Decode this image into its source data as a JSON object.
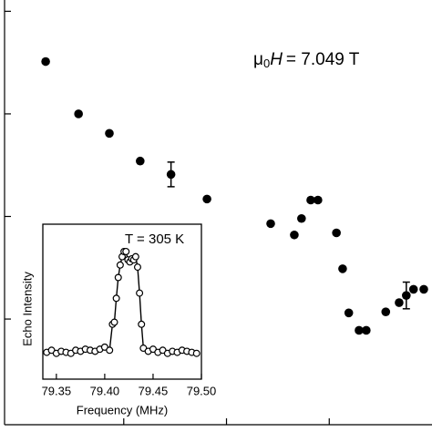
{
  "chart_data": [
    {
      "type": "scatter",
      "annotation": {
        "symbol": "μ",
        "subscript": "0",
        "variable": "H",
        "text": "= 7.049 T"
      },
      "x": [
        0.24,
        0.56,
        0.86,
        1.16,
        1.46,
        1.81,
        2.43,
        2.66,
        2.73,
        2.82,
        2.89,
        3.07,
        3.13,
        3.19,
        3.29,
        3.36,
        3.55,
        3.68,
        3.75,
        3.82,
        3.92
      ],
      "values": [
        3.51,
        3.0,
        2.81,
        2.54,
        2.41,
        2.17,
        1.93,
        1.82,
        1.98,
        2.16,
        2.16,
        1.84,
        1.49,
        1.06,
        0.89,
        0.89,
        1.07,
        1.16,
        1.23,
        1.29,
        1.29
      ],
      "errors": [
        null,
        null,
        null,
        null,
        0.12,
        null,
        null,
        null,
        null,
        null,
        null,
        null,
        null,
        null,
        null,
        null,
        null,
        null,
        0.13,
        null,
        null
      ],
      "color": "#000000",
      "xlim": [
        -0.16,
        4.0
      ],
      "xticks": [
        1,
        2,
        3
      ],
      "ylim": [
        -0.03,
        4.11
      ],
      "yticks": [
        1,
        2,
        3,
        4
      ]
    },
    {
      "type": "line",
      "label": "T = 305 K",
      "xlabel": "Frequency (MHz)",
      "ylabel": "Echo Intensity",
      "x": [
        79.34,
        79.345,
        79.35,
        79.355,
        79.36,
        79.365,
        79.37,
        79.375,
        79.38,
        79.385,
        79.39,
        79.395,
        79.4,
        79.405,
        79.408,
        79.41,
        79.412,
        79.414,
        79.416,
        79.418,
        79.42,
        79.422,
        79.424,
        79.426,
        79.428,
        79.43,
        79.432,
        79.434,
        79.436,
        79.438,
        79.44,
        79.445,
        79.45,
        79.455,
        79.46,
        79.465,
        79.47,
        79.475,
        79.48,
        79.485,
        79.49,
        79.495
      ],
      "values": [
        0.03,
        0.05,
        0.02,
        0.04,
        0.03,
        0.02,
        0.05,
        0.04,
        0.06,
        0.05,
        0.04,
        0.06,
        0.08,
        0.05,
        0.3,
        0.32,
        0.55,
        0.75,
        0.87,
        0.95,
        1.0,
        1.0,
        0.92,
        0.9,
        0.93,
        0.92,
        0.95,
        0.85,
        0.6,
        0.3,
        0.07,
        0.04,
        0.06,
        0.03,
        0.05,
        0.02,
        0.04,
        0.03,
        0.05,
        0.04,
        0.03,
        0.02
      ],
      "color": "#000000",
      "xlim": [
        79.336,
        79.5
      ],
      "xticks": [
        79.35,
        {
          "value": 79.4,
          "label": "79.40"
        },
        79.45,
        {
          "value": 79.5,
          "label": "79.50"
        }
      ],
      "ylim": [
        -0.228,
        1.263
      ]
    }
  ]
}
